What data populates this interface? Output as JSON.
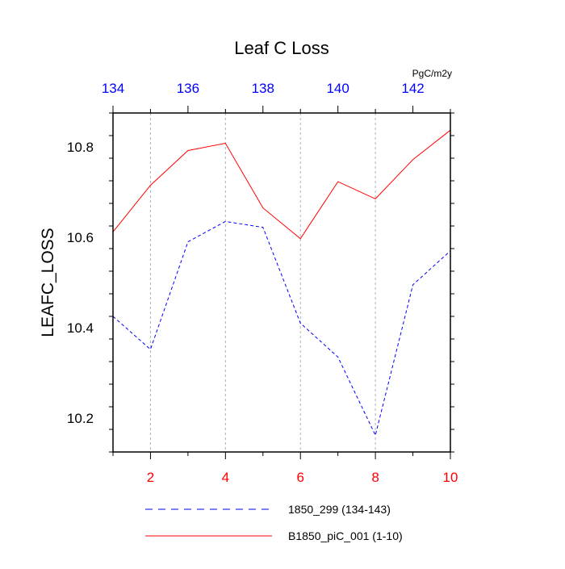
{
  "chart_data": {
    "type": "line",
    "title": "Leaf C Loss",
    "ylabel": "LEAFC_LOSS",
    "units": "PgC/m2y",
    "xlim": [
      1,
      10
    ],
    "ylim": [
      10.125,
      10.875
    ],
    "top_xlim": [
      134,
      143
    ],
    "x": [
      1,
      2,
      3,
      4,
      5,
      6,
      7,
      8,
      9,
      10
    ],
    "bottom_ticks": [
      "2",
      "4",
      "6",
      "8",
      "10"
    ],
    "top_ticks": [
      "134",
      "136",
      "138",
      "140",
      "142"
    ],
    "y_ticks": [
      "10.2",
      "10.4",
      "10.6",
      "10.8"
    ],
    "vertical_grid": true,
    "colors": {
      "bottom_axis": "#ff0000",
      "top_axis": "#0000ff"
    },
    "series": [
      {
        "name": "1850_299 (134-143)",
        "axis": "top",
        "x": [
          134,
          135,
          136,
          137,
          138,
          139,
          140,
          141,
          142,
          143
        ],
        "values": [
          10.425,
          10.352,
          10.59,
          10.635,
          10.622,
          10.41,
          10.335,
          10.162,
          10.495,
          10.57
        ],
        "color": "#0000ff",
        "dash": "dashed"
      },
      {
        "name": "B1850_piC_001 (1-10)",
        "axis": "bottom",
        "x": [
          1,
          2,
          3,
          4,
          5,
          6,
          7,
          8,
          9,
          10
        ],
        "values": [
          10.612,
          10.715,
          10.792,
          10.808,
          10.665,
          10.597,
          10.723,
          10.685,
          10.772,
          10.837
        ],
        "color": "#ff0000",
        "dash": "solid"
      }
    ],
    "legend_position": "bottom"
  }
}
